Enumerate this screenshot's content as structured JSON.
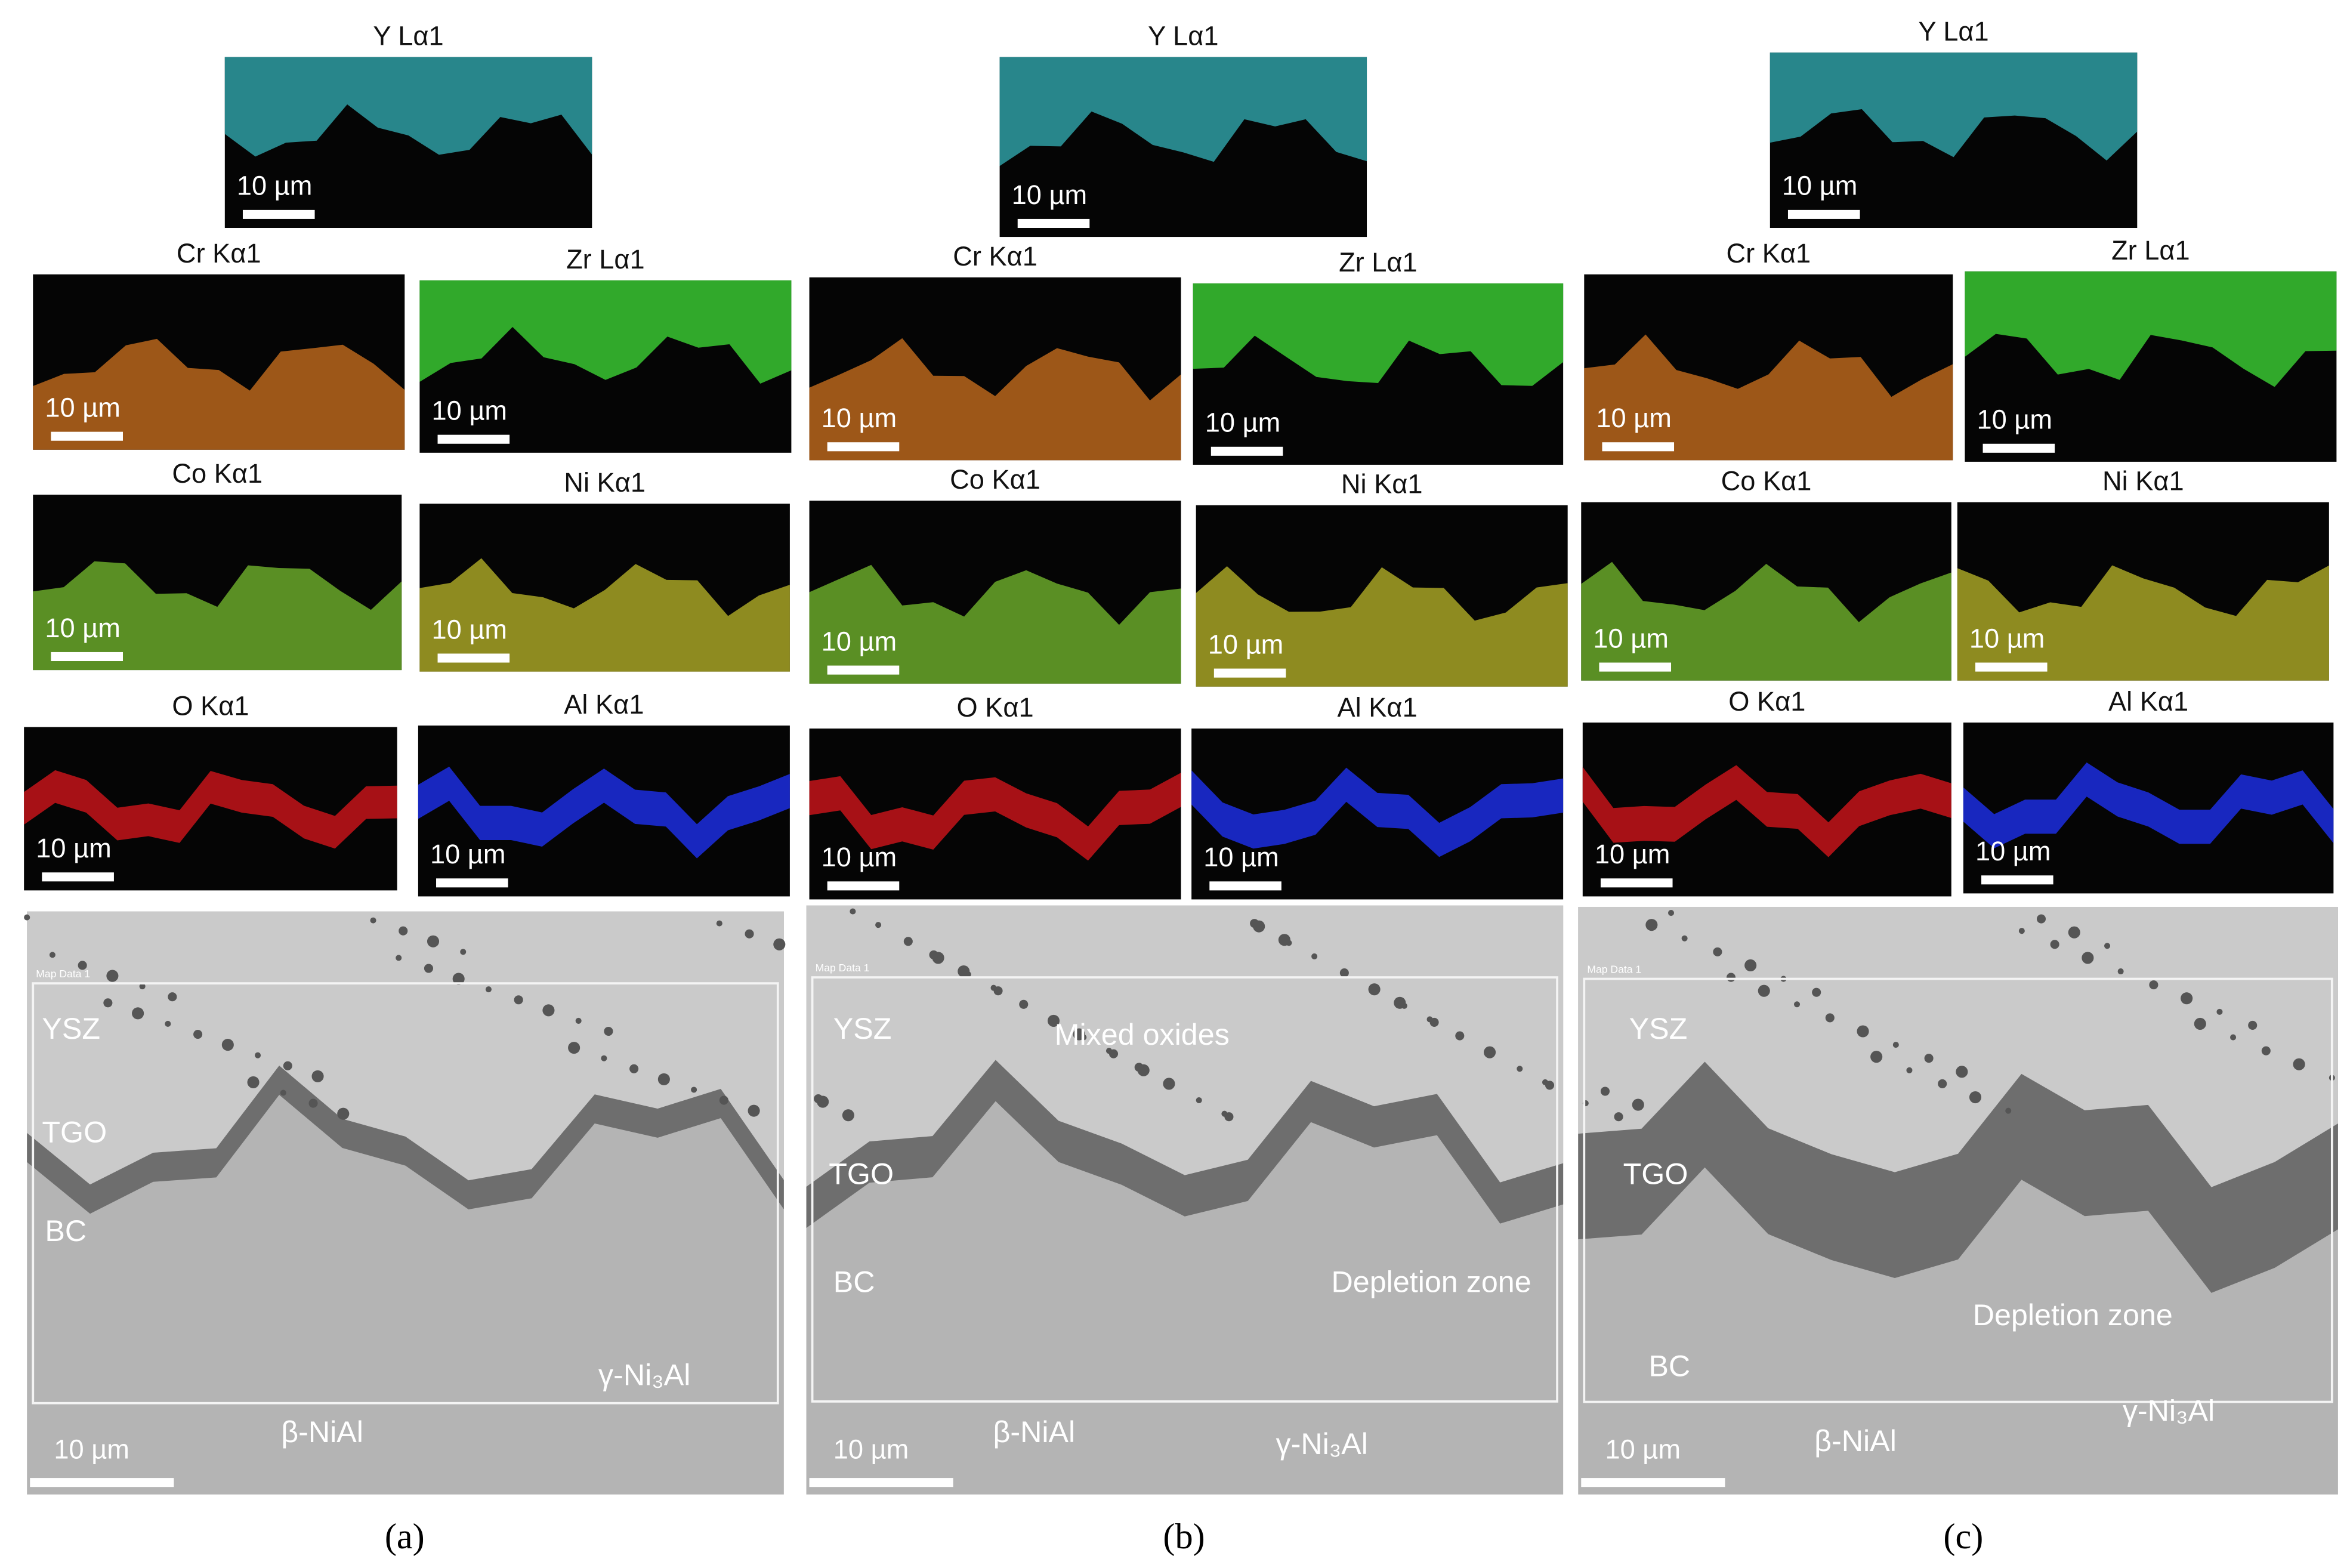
{
  "panels": [
    {
      "caption": "(a)",
      "maps": [
        {
          "label": "Y Lα1",
          "scale": "10 µm"
        },
        {
          "label": "Cr Kα1",
          "scale": "10 µm"
        },
        {
          "label": "Zr Lα1",
          "scale": "10 µm"
        },
        {
          "label": "Co Kα1",
          "scale": "10 µm"
        },
        {
          "label": "Ni Kα1",
          "scale": "10 µm"
        },
        {
          "label": "O Kα1",
          "scale": "10 µm"
        },
        {
          "label": "Al Kα1",
          "scale": "10 µm"
        }
      ],
      "sem": {
        "map_label": "Map Data 1",
        "scale": "10 µm",
        "labels": [
          "YSZ",
          "TGO",
          "BC",
          "β-NiAl",
          "γ-Ni₃Al"
        ]
      }
    },
    {
      "caption": "(b)",
      "maps": [
        {
          "label": "Y Lα1",
          "scale": "10 µm"
        },
        {
          "label": "Cr Kα1",
          "scale": "10 µm"
        },
        {
          "label": "Zr Lα1",
          "scale": "10 µm"
        },
        {
          "label": "Co Kα1",
          "scale": "10 µm"
        },
        {
          "label": "Ni Kα1",
          "scale": "10 µm"
        },
        {
          "label": "O Kα1",
          "scale": "10 µm"
        },
        {
          "label": "Al Kα1",
          "scale": "10 µm"
        }
      ],
      "sem": {
        "map_label": "Map Data 1",
        "scale": "10 µm",
        "labels": [
          "YSZ",
          "Mixed oxides",
          "TGO",
          "BC",
          "Depletion zone",
          "β-NiAl",
          "γ-Ni₃Al"
        ]
      }
    },
    {
      "caption": "(c)",
      "maps": [
        {
          "label": "Y Lα1",
          "scale": "10 µm"
        },
        {
          "label": "Cr Kα1",
          "scale": "10 µm"
        },
        {
          "label": "Zr Lα1",
          "scale": "10 µm"
        },
        {
          "label": "Co Kα1",
          "scale": "10 µm"
        },
        {
          "label": "Ni Kα1",
          "scale": "10 µm"
        },
        {
          "label": "O Kα1",
          "scale": "10 µm"
        },
        {
          "label": "Al Kα1",
          "scale": "10 µm"
        }
      ],
      "sem": {
        "map_label": "Map Data 1",
        "scale": "10 µm",
        "labels": [
          "YSZ",
          "TGO",
          "Depletion zone",
          "BC",
          "β-NiAl",
          "γ-Ni₃Al"
        ]
      }
    }
  ]
}
